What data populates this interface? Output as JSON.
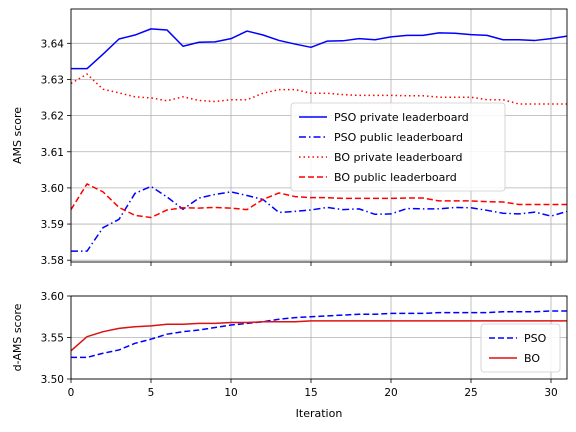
{
  "chart_data": [
    {
      "type": "line",
      "ylabel": "AMS score",
      "xlabel": "",
      "xlim": [
        0,
        31
      ],
      "ylim": [
        3.5795,
        3.6495
      ],
      "xticks": [
        0,
        5,
        10,
        15,
        20,
        25,
        30
      ],
      "yticks": [
        3.58,
        3.59,
        3.6,
        3.61,
        3.62,
        3.63,
        3.64
      ],
      "ytick_labels": [
        "3.58",
        "3.59",
        "3.60",
        "3.61",
        "3.62",
        "3.63",
        "3.64"
      ],
      "grid": true,
      "legend_position": "center-right",
      "series": [
        {
          "name": "PSO private leaderboard",
          "color": "#0000ff",
          "dash": "solid",
          "x": [
            0,
            1,
            2,
            3,
            4,
            5,
            6,
            7,
            8,
            9,
            10,
            11,
            12,
            13,
            14,
            15,
            16,
            17,
            18,
            19,
            20,
            21,
            22,
            23,
            24,
            25,
            26,
            27,
            28,
            29,
            30,
            31
          ],
          "values": [
            3.633,
            3.633,
            3.637,
            3.6412,
            3.6423,
            3.644,
            3.6437,
            3.6392,
            3.6403,
            3.6404,
            3.6413,
            3.6434,
            3.6423,
            3.6408,
            3.6398,
            3.6389,
            3.6406,
            3.6407,
            3.6413,
            3.641,
            3.6418,
            3.6422,
            3.6422,
            3.6429,
            3.6428,
            3.6424,
            3.6422,
            3.641,
            3.641,
            3.6408,
            3.6413,
            3.642
          ]
        },
        {
          "name": "PSO public leaderboard",
          "color": "#0000ff",
          "dash": "dashdot",
          "x": [
            0,
            1,
            2,
            3,
            4,
            5,
            6,
            7,
            8,
            9,
            10,
            11,
            12,
            13,
            14,
            15,
            16,
            17,
            18,
            19,
            20,
            21,
            22,
            23,
            24,
            25,
            26,
            27,
            28,
            29,
            30,
            31
          ],
          "values": [
            3.5825,
            3.5825,
            3.589,
            3.5913,
            3.5985,
            3.6004,
            3.5975,
            3.5941,
            3.5972,
            3.5982,
            3.5989,
            3.5979,
            3.5968,
            3.5932,
            3.5935,
            3.5939,
            3.5946,
            3.594,
            3.5942,
            3.5927,
            3.5928,
            3.5943,
            3.5942,
            3.5942,
            3.5946,
            3.5945,
            3.5938,
            3.593,
            3.5928,
            3.5933,
            3.5922,
            3.5935
          ]
        },
        {
          "name": "BO private leaderboard",
          "color": "#ff0000",
          "dash": "dotted",
          "x": [
            0,
            1,
            2,
            3,
            4,
            5,
            6,
            7,
            8,
            9,
            10,
            11,
            12,
            13,
            14,
            15,
            16,
            17,
            18,
            19,
            20,
            21,
            22,
            23,
            24,
            25,
            26,
            27,
            28,
            29,
            30,
            31
          ],
          "values": [
            3.6289,
            3.6315,
            3.6273,
            3.6263,
            3.6252,
            3.6249,
            3.6241,
            3.6252,
            3.6242,
            3.6239,
            3.6244,
            3.6244,
            3.6262,
            3.6272,
            3.6272,
            3.6262,
            3.6262,
            3.6258,
            3.6256,
            3.6256,
            3.6256,
            3.6255,
            3.6255,
            3.6251,
            3.6251,
            3.6251,
            3.6244,
            3.6244,
            3.6232,
            3.6232,
            3.6232,
            3.6232
          ]
        },
        {
          "name": "BO public leaderboard",
          "color": "#ff0000",
          "dash": "dashed",
          "x": [
            0,
            1,
            2,
            3,
            4,
            5,
            6,
            7,
            8,
            9,
            10,
            11,
            12,
            13,
            14,
            15,
            16,
            17,
            18,
            19,
            20,
            21,
            22,
            23,
            24,
            25,
            26,
            27,
            28,
            29,
            30,
            31
          ],
          "values": [
            3.594,
            3.6011,
            3.5989,
            3.5946,
            3.5924,
            3.5918,
            3.5939,
            3.5945,
            3.5944,
            3.5946,
            3.5944,
            3.594,
            3.5968,
            3.5986,
            3.5976,
            3.5973,
            3.5973,
            3.5971,
            3.5971,
            3.5971,
            3.5971,
            3.5972,
            3.5972,
            3.5964,
            3.5964,
            3.5964,
            3.5962,
            3.5961,
            3.5954,
            3.5954,
            3.5954,
            3.5954
          ]
        }
      ]
    },
    {
      "type": "line",
      "ylabel": "d-AMS score",
      "xlabel": "Iteration",
      "xlim": [
        0,
        31
      ],
      "ylim": [
        3.5,
        3.6
      ],
      "xticks": [
        0,
        5,
        10,
        15,
        20,
        25,
        30
      ],
      "yticks": [
        3.5,
        3.55,
        3.6
      ],
      "ytick_labels": [
        "3.50",
        "3.55",
        "3.60"
      ],
      "grid": true,
      "legend_position": "lower-right",
      "series": [
        {
          "name": "PSO",
          "color": "#0000ff",
          "dash": "dashed",
          "x": [
            0,
            1,
            2,
            3,
            4,
            5,
            6,
            7,
            8,
            9,
            10,
            11,
            12,
            13,
            14,
            15,
            16,
            17,
            18,
            19,
            20,
            21,
            22,
            23,
            24,
            25,
            26,
            27,
            28,
            29,
            30,
            31
          ],
          "values": [
            3.526,
            3.526,
            3.531,
            3.535,
            3.543,
            3.548,
            3.554,
            3.557,
            3.559,
            3.562,
            3.565,
            3.567,
            3.569,
            3.572,
            3.574,
            3.575,
            3.576,
            3.577,
            3.578,
            3.578,
            3.579,
            3.579,
            3.579,
            3.58,
            3.58,
            3.58,
            3.58,
            3.581,
            3.581,
            3.581,
            3.582,
            3.582
          ]
        },
        {
          "name": "BO",
          "color": "#dd1111",
          "dash": "solid",
          "x": [
            0,
            1,
            2,
            3,
            4,
            5,
            6,
            7,
            8,
            9,
            10,
            11,
            12,
            13,
            14,
            15,
            16,
            17,
            18,
            19,
            20,
            21,
            22,
            23,
            24,
            25,
            26,
            27,
            28,
            29,
            30,
            31
          ],
          "values": [
            3.534,
            3.551,
            3.557,
            3.561,
            3.563,
            3.564,
            3.566,
            3.566,
            3.567,
            3.567,
            3.568,
            3.568,
            3.569,
            3.569,
            3.569,
            3.57,
            3.57,
            3.57,
            3.57,
            3.57,
            3.57,
            3.57,
            3.57,
            3.57,
            3.57,
            3.57,
            3.57,
            3.57,
            3.57,
            3.57,
            3.57,
            3.57
          ]
        }
      ]
    }
  ]
}
